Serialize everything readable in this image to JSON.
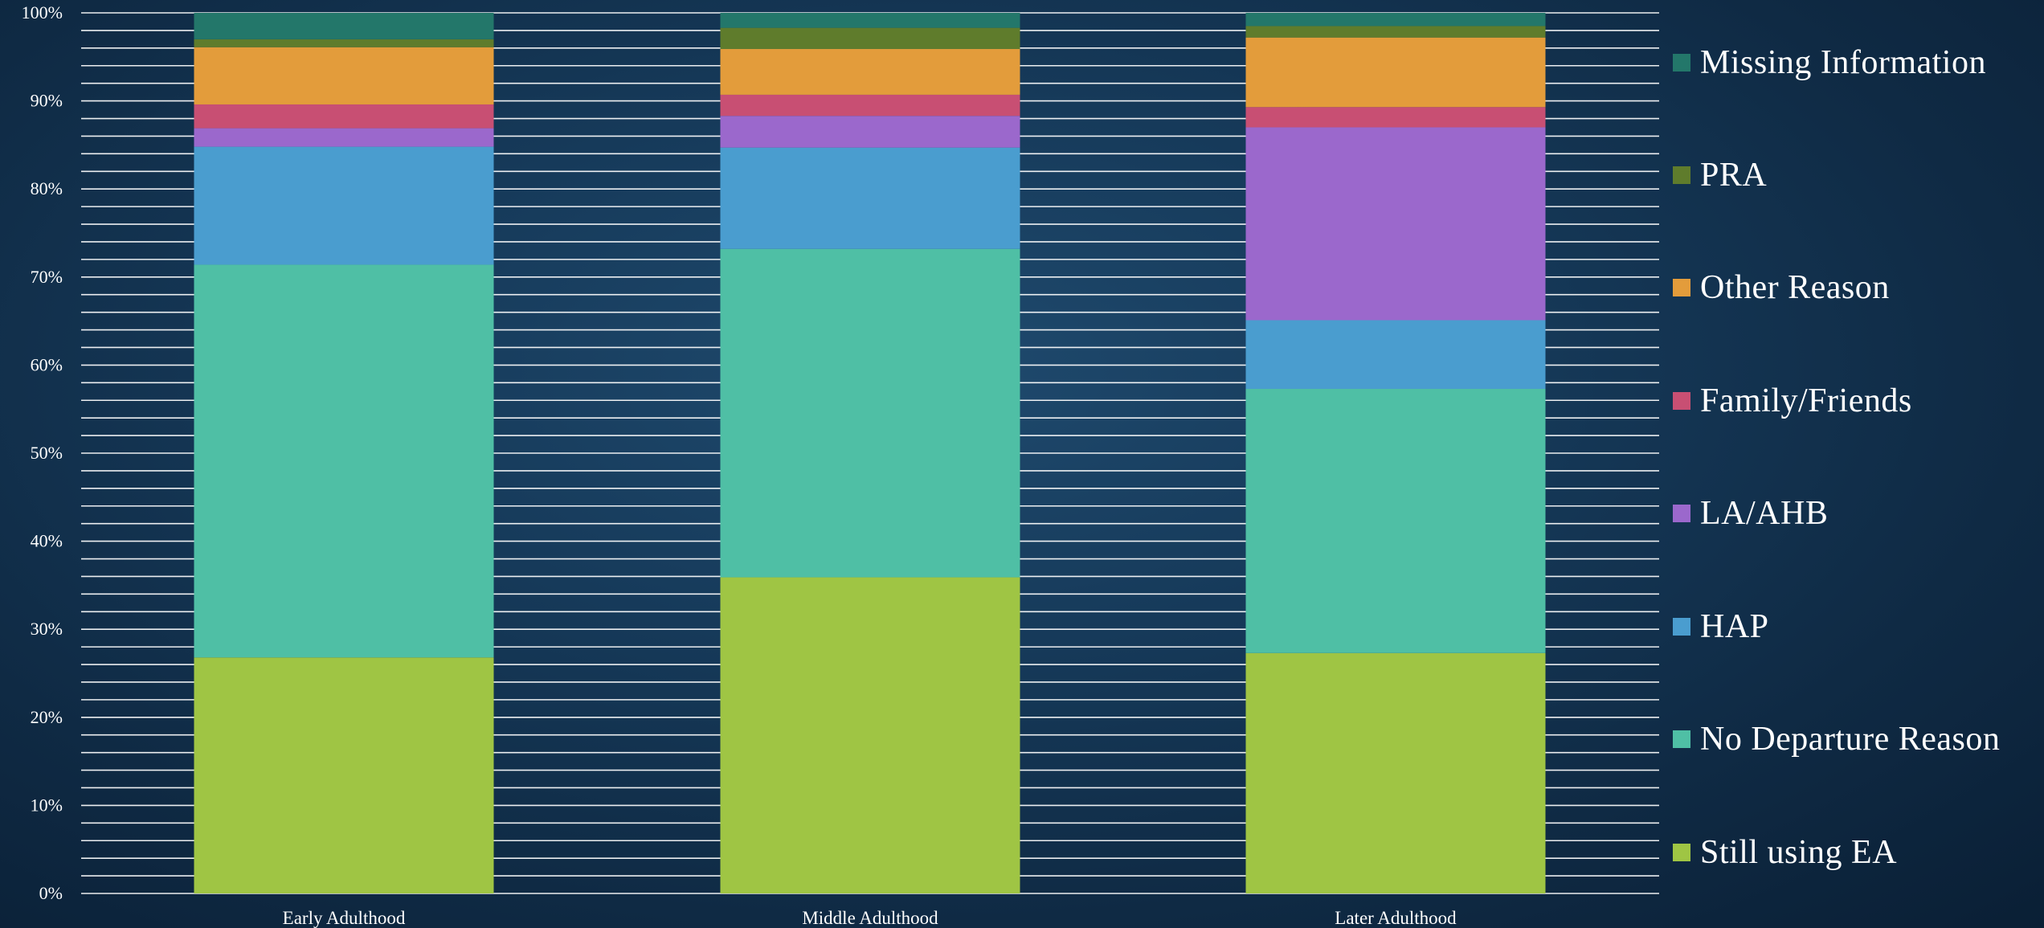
{
  "chart_data": {
    "type": "bar",
    "stacked": true,
    "percent_stacked": true,
    "title": "",
    "xlabel": "",
    "ylabel": "",
    "ylim": [
      0,
      100
    ],
    "y_tick_labels": [
      "0%",
      "10%",
      "20%",
      "30%",
      "40%",
      "50%",
      "60%",
      "70%",
      "80%",
      "90%",
      "100%"
    ],
    "grid": true,
    "legend_position": "right",
    "categories": [
      "Early Adulthood",
      "Middle Adulthood",
      "Later Adulthood"
    ],
    "series": [
      {
        "name": "Still using EA",
        "color": "#9fc544",
        "values": [
          26.8,
          35.9,
          27.3
        ]
      },
      {
        "name": "No Departure Reason",
        "color": "#4fbfa5",
        "values": [
          44.6,
          37.3,
          30.0
        ]
      },
      {
        "name": "HAP",
        "color": "#4a9dcf",
        "values": [
          13.4,
          11.5,
          7.8
        ]
      },
      {
        "name": "LA/AHB",
        "color": "#9b68cc",
        "values": [
          2.1,
          3.6,
          21.9
        ]
      },
      {
        "name": "Family/Friends",
        "color": "#c84f73",
        "values": [
          2.7,
          2.4,
          2.3
        ]
      },
      {
        "name": "Other Reason",
        "color": "#e39c3b",
        "values": [
          6.5,
          5.2,
          7.9
        ]
      },
      {
        "name": "PRA",
        "color": "#5f7c2c",
        "values": [
          0.9,
          2.4,
          1.3
        ]
      },
      {
        "name": "Missing Information",
        "color": "#23776a",
        "values": [
          3.0,
          1.7,
          1.5
        ]
      }
    ]
  }
}
